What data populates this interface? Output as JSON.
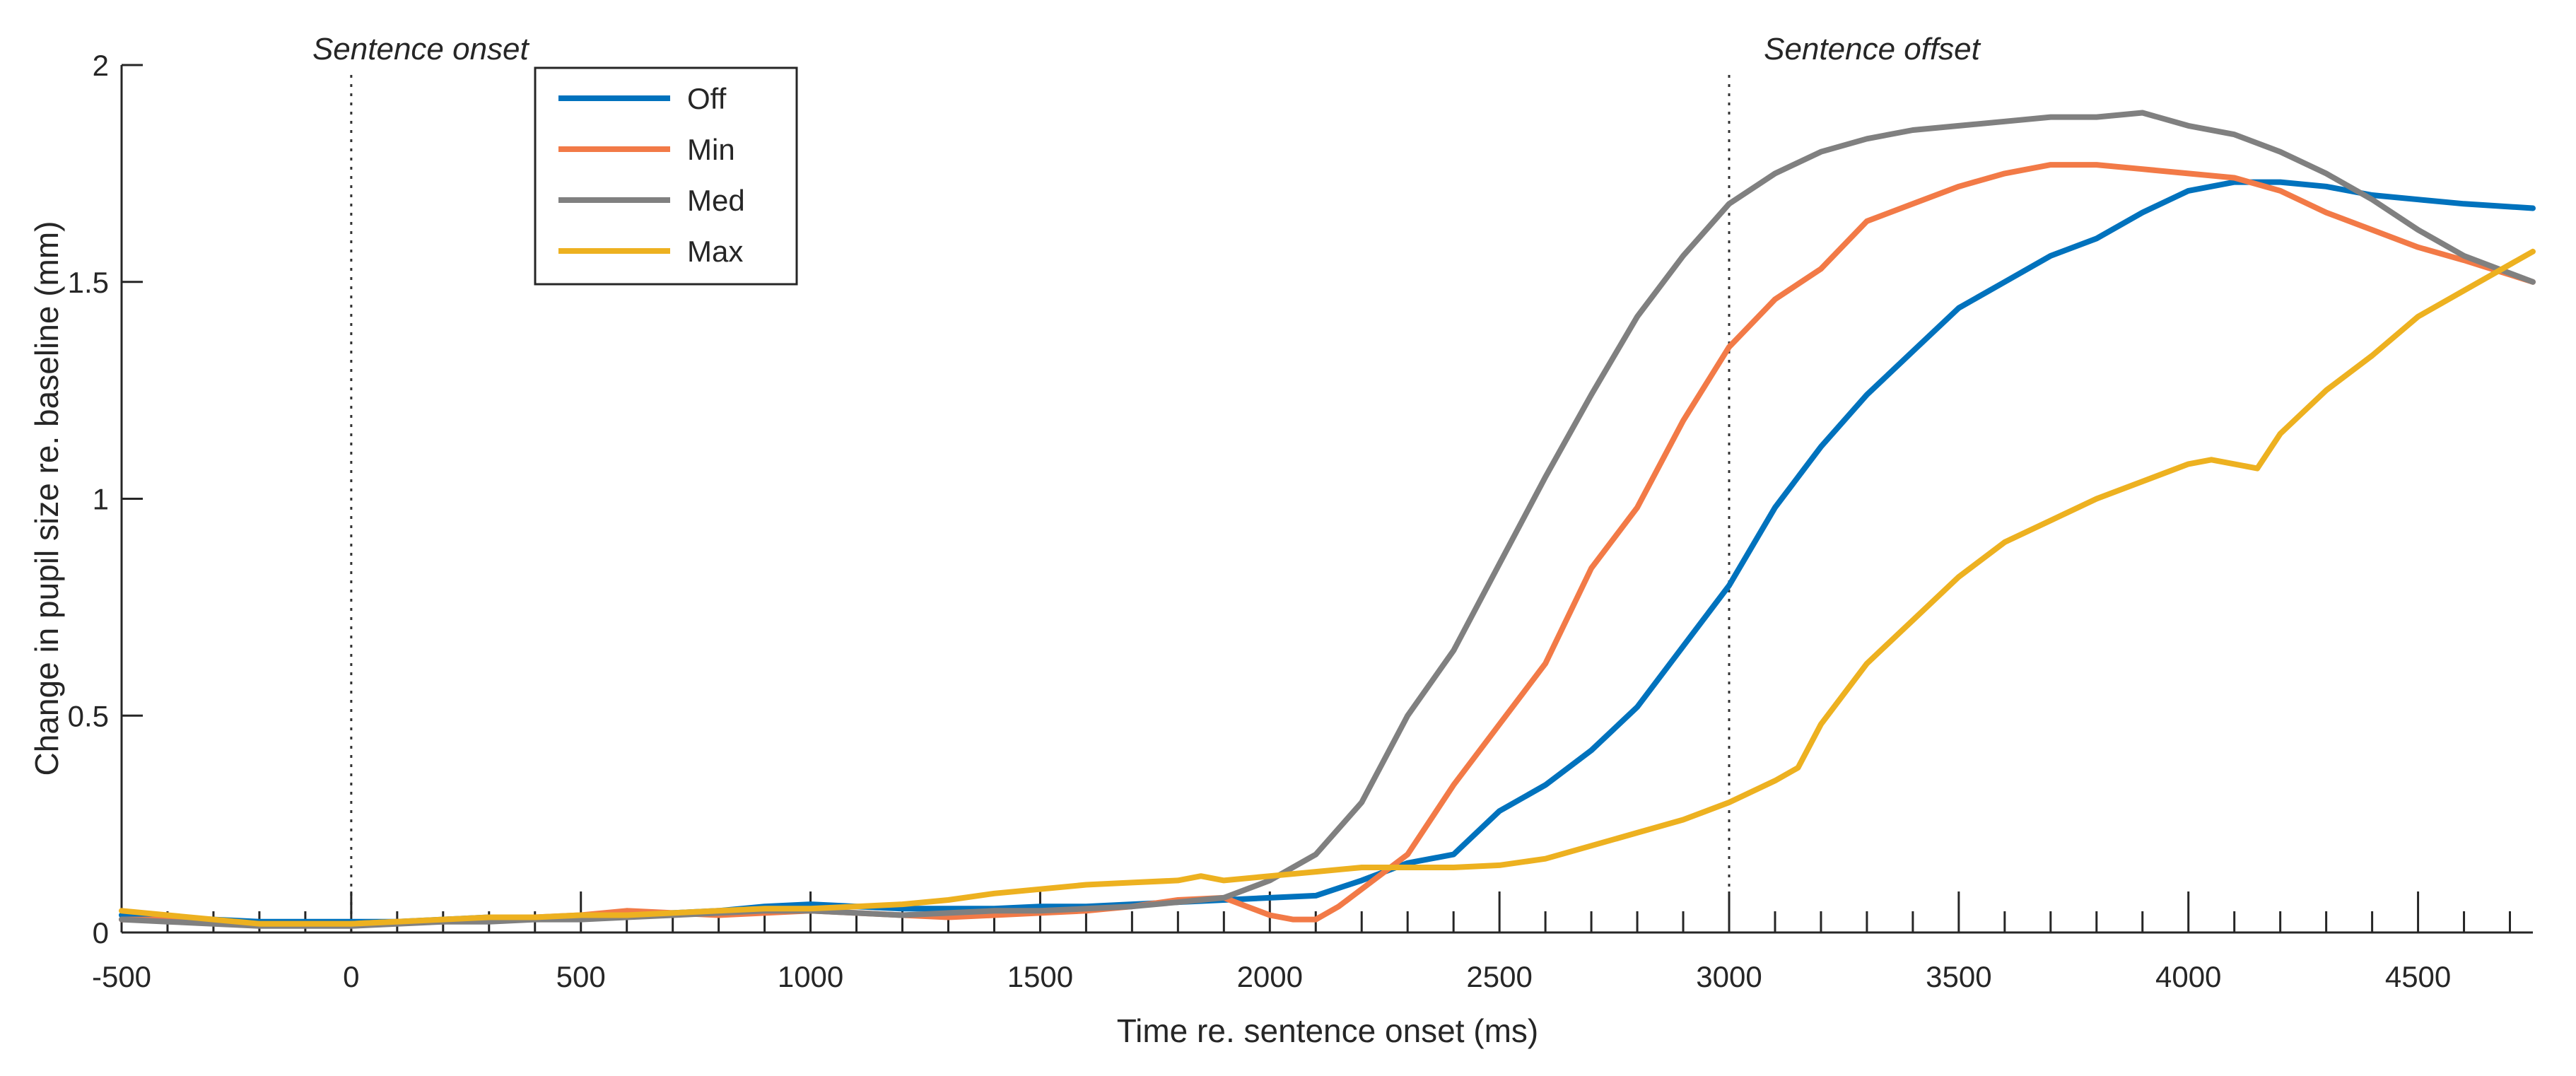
{
  "chart_data": {
    "type": "line",
    "title": "",
    "xlabel": "Time re. sentence onset (ms)",
    "ylabel": "Change in pupil size re. baseline (mm)",
    "xlim": [
      -500,
      4750
    ],
    "ylim": [
      0,
      2
    ],
    "xticks": [
      -500,
      0,
      500,
      1000,
      1500,
      2000,
      2500,
      3000,
      3500,
      4000,
      4500
    ],
    "xtick_labels": [
      "-500",
      "0",
      "500",
      "1000",
      "1500",
      "2000",
      "2500",
      "3000",
      "3500",
      "4000",
      "4500"
    ],
    "yticks": [
      0,
      0.5,
      1,
      1.5,
      2
    ],
    "ytick_labels": [
      "0",
      "0.5",
      "1",
      "1.5",
      "2"
    ],
    "minor_tick_step": 100,
    "grid": false,
    "legend_position": "top-left",
    "annotations": [
      {
        "text": "Sentence onset",
        "x": 0
      },
      {
        "text": "Sentence offset",
        "x": 3000
      }
    ],
    "series": [
      {
        "name": "Off",
        "color": "#0072BD",
        "x": [
          -500,
          -400,
          -300,
          -200,
          -100,
          0,
          100,
          200,
          300,
          400,
          500,
          600,
          700,
          800,
          900,
          1000,
          1100,
          1200,
          1300,
          1400,
          1500,
          1600,
          1700,
          1800,
          1900,
          2000,
          2100,
          2200,
          2300,
          2350,
          2400,
          2500,
          2600,
          2700,
          2800,
          2900,
          3000,
          3100,
          3200,
          3300,
          3400,
          3500,
          3600,
          3700,
          3800,
          3900,
          4000,
          4100,
          4200,
          4300,
          4400,
          4500,
          4600,
          4750
        ],
        "values": [
          0.04,
          0.035,
          0.03,
          0.025,
          0.025,
          0.025,
          0.025,
          0.03,
          0.035,
          0.035,
          0.035,
          0.04,
          0.045,
          0.05,
          0.06,
          0.065,
          0.06,
          0.055,
          0.055,
          0.055,
          0.06,
          0.06,
          0.065,
          0.07,
          0.075,
          0.08,
          0.085,
          0.12,
          0.16,
          0.17,
          0.18,
          0.28,
          0.34,
          0.42,
          0.52,
          0.66,
          0.8,
          0.98,
          1.12,
          1.24,
          1.34,
          1.44,
          1.5,
          1.56,
          1.6,
          1.66,
          1.71,
          1.73,
          1.73,
          1.72,
          1.7,
          1.69,
          1.68,
          1.67
        ]
      },
      {
        "name": "Min",
        "color": "#F27A47",
        "x": [
          -500,
          -400,
          -300,
          -200,
          -100,
          0,
          100,
          200,
          300,
          400,
          500,
          600,
          700,
          800,
          900,
          1000,
          1100,
          1200,
          1300,
          1400,
          1500,
          1600,
          1700,
          1800,
          1900,
          1950,
          2000,
          2050,
          2100,
          2150,
          2200,
          2300,
          2400,
          2500,
          2600,
          2700,
          2800,
          2900,
          3000,
          3100,
          3200,
          3300,
          3400,
          3500,
          3600,
          3700,
          3800,
          3900,
          4000,
          4100,
          4200,
          4300,
          4400,
          4500,
          4600,
          4750
        ],
        "values": [
          0.03,
          0.03,
          0.025,
          0.02,
          0.02,
          0.02,
          0.025,
          0.025,
          0.03,
          0.035,
          0.04,
          0.05,
          0.045,
          0.04,
          0.045,
          0.05,
          0.045,
          0.04,
          0.035,
          0.04,
          0.045,
          0.05,
          0.06,
          0.075,
          0.08,
          0.06,
          0.04,
          0.03,
          0.03,
          0.06,
          0.1,
          0.18,
          0.34,
          0.48,
          0.62,
          0.84,
          0.98,
          1.18,
          1.35,
          1.46,
          1.53,
          1.64,
          1.68,
          1.72,
          1.75,
          1.77,
          1.77,
          1.76,
          1.75,
          1.74,
          1.71,
          1.66,
          1.62,
          1.58,
          1.55,
          1.5
        ]
      },
      {
        "name": "Med",
        "color": "#808080",
        "x": [
          -500,
          -400,
          -300,
          -200,
          -100,
          0,
          100,
          200,
          300,
          400,
          500,
          600,
          700,
          800,
          900,
          1000,
          1100,
          1200,
          1300,
          1400,
          1500,
          1600,
          1700,
          1800,
          1900,
          2000,
          2100,
          2200,
          2300,
          2400,
          2500,
          2600,
          2700,
          2800,
          2900,
          3000,
          3100,
          3200,
          3300,
          3400,
          3500,
          3600,
          3700,
          3800,
          3900,
          4000,
          4100,
          4200,
          4300,
          4400,
          4500,
          4600,
          4750
        ],
        "values": [
          0.03,
          0.025,
          0.02,
          0.015,
          0.015,
          0.015,
          0.02,
          0.025,
          0.025,
          0.03,
          0.03,
          0.035,
          0.04,
          0.045,
          0.05,
          0.05,
          0.045,
          0.04,
          0.045,
          0.05,
          0.05,
          0.055,
          0.06,
          0.07,
          0.08,
          0.12,
          0.18,
          0.3,
          0.5,
          0.65,
          0.85,
          1.05,
          1.24,
          1.42,
          1.56,
          1.68,
          1.75,
          1.8,
          1.83,
          1.85,
          1.86,
          1.87,
          1.88,
          1.88,
          1.89,
          1.86,
          1.84,
          1.8,
          1.75,
          1.69,
          1.62,
          1.56,
          1.5
        ]
      },
      {
        "name": "Max",
        "color": "#EDB120",
        "x": [
          -500,
          -400,
          -300,
          -200,
          -100,
          0,
          100,
          200,
          300,
          400,
          500,
          600,
          700,
          800,
          900,
          1000,
          1100,
          1200,
          1300,
          1400,
          1500,
          1600,
          1700,
          1800,
          1850,
          1900,
          2000,
          2100,
          2200,
          2300,
          2400,
          2500,
          2600,
          2700,
          2800,
          2900,
          3000,
          3100,
          3150,
          3200,
          3300,
          3400,
          3500,
          3600,
          3700,
          3800,
          3900,
          4000,
          4050,
          4100,
          4150,
          4200,
          4300,
          4400,
          4500,
          4600,
          4750
        ],
        "values": [
          0.05,
          0.04,
          0.03,
          0.02,
          0.02,
          0.02,
          0.025,
          0.03,
          0.035,
          0.035,
          0.04,
          0.04,
          0.045,
          0.05,
          0.055,
          0.055,
          0.06,
          0.065,
          0.075,
          0.09,
          0.1,
          0.11,
          0.115,
          0.12,
          0.13,
          0.12,
          0.13,
          0.14,
          0.15,
          0.15,
          0.15,
          0.155,
          0.17,
          0.2,
          0.23,
          0.26,
          0.3,
          0.35,
          0.38,
          0.48,
          0.62,
          0.72,
          0.82,
          0.9,
          0.95,
          1.0,
          1.04,
          1.08,
          1.09,
          1.08,
          1.07,
          1.15,
          1.25,
          1.33,
          1.42,
          1.48,
          1.57
        ]
      }
    ]
  }
}
